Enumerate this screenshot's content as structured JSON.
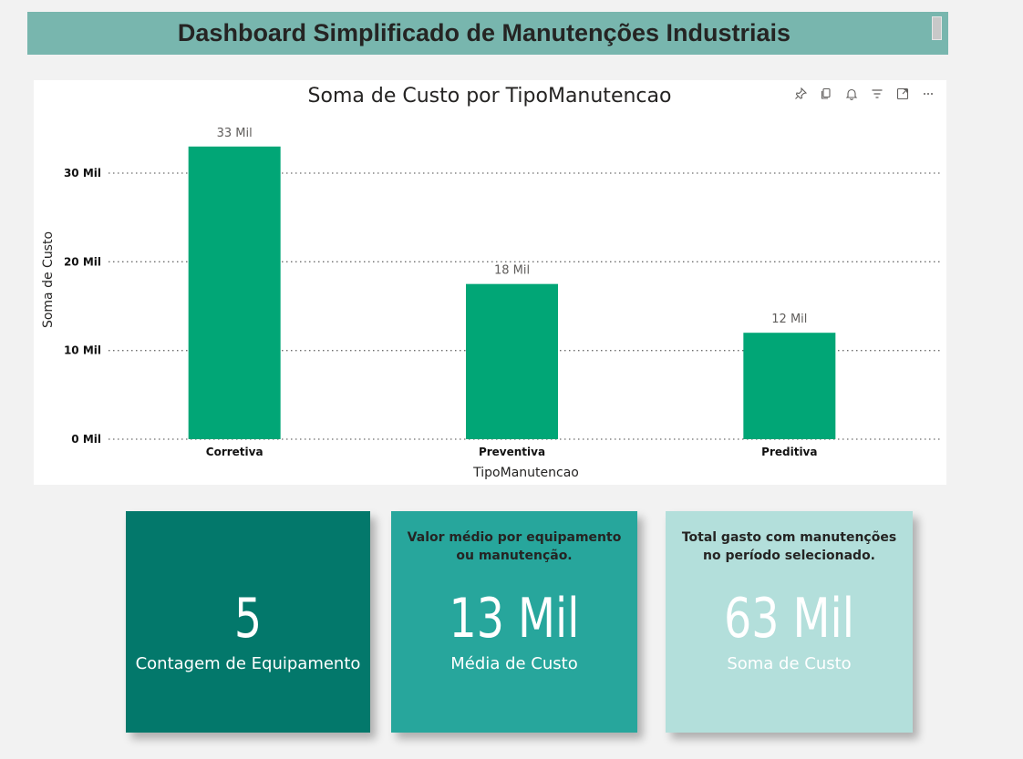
{
  "header": {
    "title": "Dashboard Simplificado de Manutenções Industriais"
  },
  "chart": {
    "toolbar_icons": [
      "pin-icon",
      "copy-icon",
      "bell-icon",
      "filter-icon",
      "expand-icon",
      "more-options-icon"
    ]
  },
  "chart_data": {
    "type": "bar",
    "title": "Soma de Custo por TipoManutencao",
    "categories": [
      "Corretiva",
      "Preventiva",
      "Preditiva"
    ],
    "values": [
      33000,
      17500,
      12000
    ],
    "data_labels": [
      "33 Mil",
      "18 Mil",
      "12 Mil"
    ],
    "xlabel": "TipoManutencao",
    "ylabel": "Soma de Custo",
    "yticks": [
      0,
      10000,
      20000,
      30000
    ],
    "ytick_labels": [
      "0 Mil",
      "10 Mil",
      "20 Mil",
      "30 Mil"
    ],
    "ylim": [
      0,
      30000
    ],
    "grid": true,
    "bar_color": "#01a676"
  },
  "cards": [
    {
      "description": "",
      "value": "5",
      "label": "Contagem de Equipamento",
      "bg": "#03786b",
      "value_color": "#ffffff",
      "label_color": "#ffffff"
    },
    {
      "description": "Valor médio por equipamento ou manutenção.",
      "value": "13 Mil",
      "label": "Média de Custo",
      "bg": "#27a69c",
      "value_color": "#ffffff",
      "label_color": "#ffffff"
    },
    {
      "description": "Total gasto com manutenções no período selecionado.",
      "value": "63 Mil",
      "label": "Soma de Custo",
      "bg": "#b3dfdb",
      "value_color": "#ffffff",
      "label_color": "#ffffff"
    }
  ]
}
